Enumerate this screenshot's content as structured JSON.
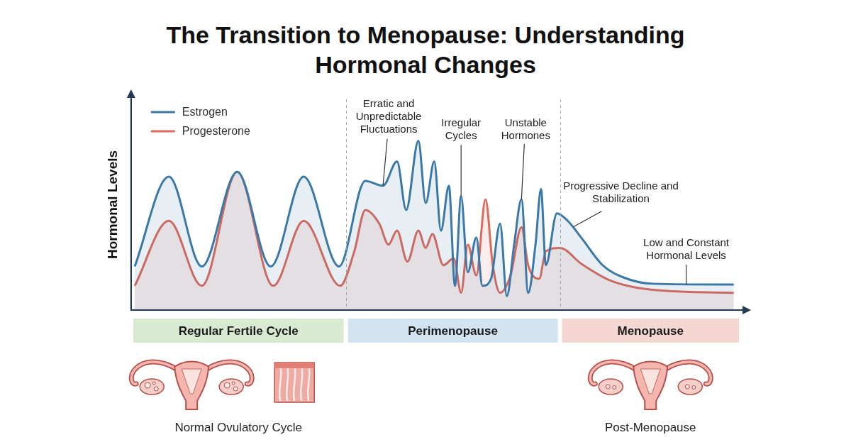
{
  "chart_data": {
    "type": "line",
    "title": "The Transition to Menopause: Understanding Hormonal Changes",
    "y_label": "Hormonal Levels",
    "xlim": [
      0,
      100
    ],
    "xticks": [],
    "ylim": [
      0,
      100
    ],
    "yticks": [],
    "grid": false,
    "tick_labels": false,
    "legend": "upper left",
    "series": [
      {
        "name": "Estrogen",
        "color": "#3a78a8",
        "x": [
          0.6,
          6.2,
          11.6,
          17.4,
          22.9,
          28.3,
          34.1,
          38.4,
          41.3,
          43.6,
          45.1,
          47.1,
          48.3,
          49.7,
          50.8,
          52.1,
          53.1,
          54.1,
          55.2,
          56.6,
          57.6,
          59.0,
          60.5,
          61.6,
          62.8,
          64.0,
          65.1,
          66.3,
          67.2,
          68.0,
          69.8,
          71.5,
          73.8,
          77.3,
          80.8,
          85.5,
          98.8
        ],
        "values": [
          20.7,
          63.3,
          20.7,
          65.6,
          20.7,
          63.3,
          20.7,
          61.3,
          59.0,
          70.5,
          47.5,
          80.3,
          50.8,
          70.5,
          37.7,
          59.0,
          11.5,
          54.1,
          18.0,
          34.4,
          11.5,
          14.8,
          41.0,
          6.6,
          31.1,
          52.5,
          8.2,
          31.1,
          57.4,
          21.3,
          45.9,
          42.6,
          34.4,
          21.3,
          15.4,
          12.5,
          12.1
        ]
      },
      {
        "name": "Progesterone",
        "color": "#e0675a",
        "x": [
          0.6,
          6.2,
          11.6,
          17.4,
          23.3,
          28.3,
          34.3,
          36.6,
          38.4,
          40.7,
          42.2,
          43.6,
          45.3,
          47.1,
          48.3,
          49.4,
          51.2,
          52.9,
          54.1,
          55.2,
          56.6,
          58.1,
          59.3,
          60.5,
          62.2,
          64.0,
          65.1,
          66.9,
          68.0,
          70.3,
          73.8,
          78.5,
          83.1,
          89.0,
          98.8
        ],
        "values": [
          11.5,
          42.3,
          11.5,
          65.6,
          11.5,
          42.3,
          11.5,
          27.9,
          47.5,
          41.0,
          31.1,
          37.7,
          23.0,
          37.7,
          29.5,
          36.1,
          21.3,
          24.6,
          8.2,
          31.1,
          16.4,
          52.5,
          21.3,
          8.2,
          16.4,
          39.3,
          21.3,
          14.8,
          27.9,
          29.5,
          22.0,
          14.1,
          10.5,
          8.9,
          8.2
        ]
      }
    ],
    "phases": [
      {
        "label": "Regular Fertile Cycle",
        "start": 0,
        "end": 35.2,
        "color": "#d9ead3"
      },
      {
        "label": "Perimenopause",
        "start": 35.2,
        "end": 70.3,
        "color": "#d3e3f0"
      },
      {
        "label": "Menopause",
        "start": 70.3,
        "end": 100,
        "color": "#f4d6d3"
      }
    ],
    "annotations": [
      {
        "text": "Erratic and Unpredictable Fluctuations",
        "x": 41.3,
        "y": 59.0
      },
      {
        "text": "Irregular Cycles",
        "x": 54.1,
        "y": 54.1
      },
      {
        "text": "Unstable Hormones",
        "x": 64.0,
        "y": 52.5
      },
      {
        "text": "Progressive Decline and Stabilization",
        "x": 72.5,
        "y": 39.5
      },
      {
        "text": "Low and Constant Hormonal Levels",
        "x": 91.0,
        "y": 12.1
      }
    ],
    "illustrations": [
      {
        "label": "Normal Ovulatory Cycle",
        "phase": "Regular Fertile Cycle"
      },
      {
        "label": "Post-Menopause",
        "phase": "Menopause"
      }
    ]
  }
}
